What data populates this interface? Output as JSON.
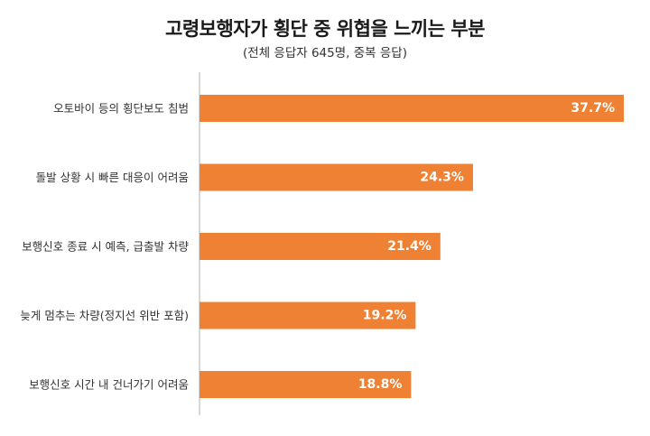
{
  "title": "고령보행자가 횡단 중 위협을 느끼는 부분",
  "subtitle": "(전체 응답자 645명, 중복 응답)",
  "colors": {
    "bar": "#EE8133",
    "axis": "#B0B0B0",
    "bar_label": "#FFFFFF",
    "category_label": "#333333"
  },
  "chart_data": {
    "type": "bar",
    "orientation": "horizontal",
    "title": "고령보행자가 횡단 중 위협을 느끼는 부분",
    "subtitle": "(전체 응답자 645명, 중복 응답)",
    "categories": [
      "오토바이 등의 횡단보도 침범",
      "돌발 상황 시 빠른 대응이 어려움",
      "보행신호 종료 시 예측, 급출발 차량",
      "늦게 멈추는 차량(정지선 위반 포함)",
      "보행신호 시간 내 건너가기 어려움"
    ],
    "values": [
      37.7,
      24.3,
      21.4,
      19.2,
      18.8
    ],
    "value_labels": [
      "37.7%",
      "24.3%",
      "21.4%",
      "19.2%",
      "18.8%"
    ],
    "unit": "%",
    "xlim": [
      0,
      37.7
    ],
    "grid": false,
    "legend": "none"
  }
}
